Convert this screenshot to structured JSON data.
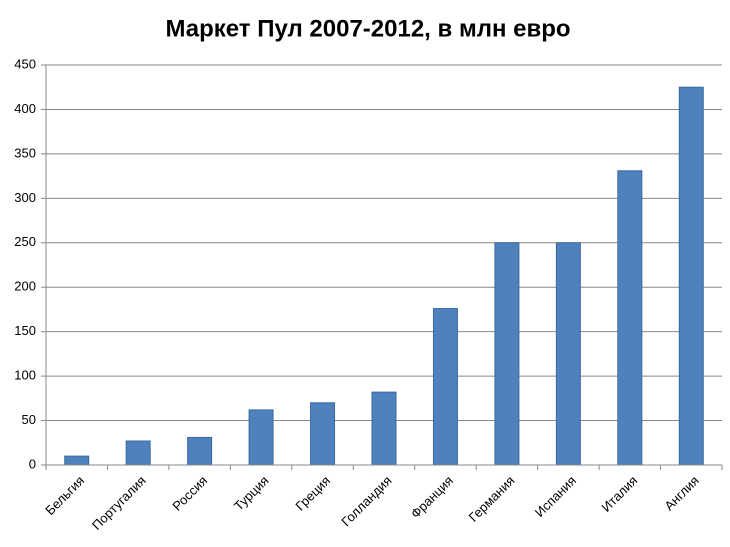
{
  "chart_data": {
    "type": "bar",
    "title": "Маркет Пул 2007-2012, в млн евро",
    "categories": [
      "Бельгия",
      "Португалия",
      "Россия",
      "Турция",
      "Греция",
      "Голландия",
      "Франция",
      "Германия",
      "Испания",
      "Италия",
      "Англия"
    ],
    "values": [
      10,
      27,
      31,
      62,
      70,
      82,
      176,
      250,
      250,
      331,
      425
    ],
    "color": "#4f81bd",
    "ylim": [
      0,
      450
    ],
    "yticks": [
      0,
      50,
      100,
      150,
      200,
      250,
      300,
      350,
      400,
      450
    ],
    "grid": true
  }
}
